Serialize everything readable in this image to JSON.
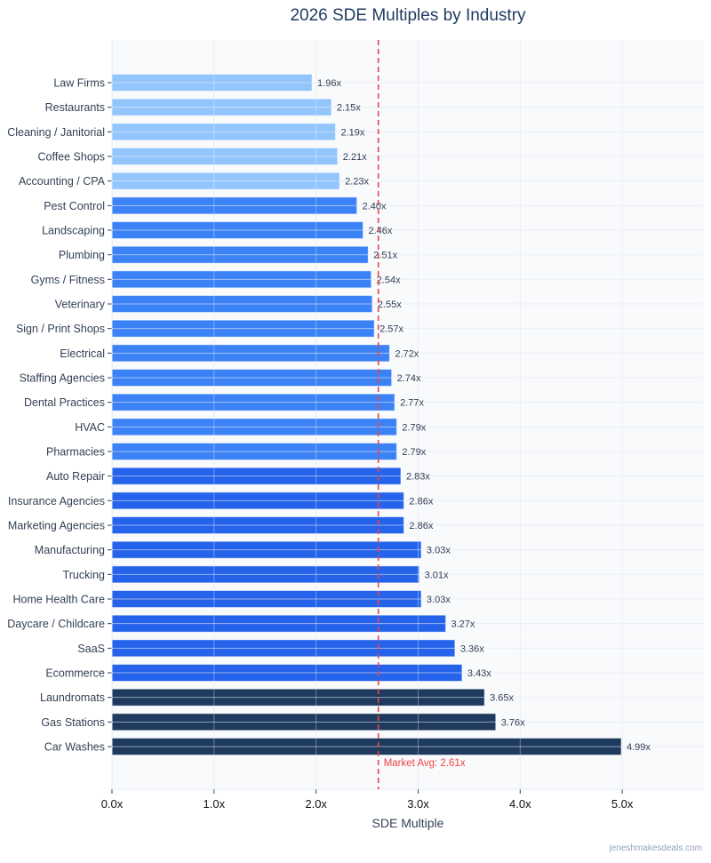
{
  "chart_data": {
    "type": "bar",
    "orientation": "horizontal",
    "title": "2026 SDE Multiples by Industry",
    "xlabel": "SDE Multiple",
    "ylabel": "",
    "xlim": [
      0,
      5.8
    ],
    "xticks": [
      0,
      1,
      2,
      3,
      4,
      5
    ],
    "xtick_labels": [
      "0.0x",
      "1.0x",
      "2.0x",
      "3.0x",
      "4.0x",
      "5.0x"
    ],
    "grid": true,
    "categories": [
      "Law Firms",
      "Restaurants",
      "Cleaning / Janitorial",
      "Coffee Shops",
      "Accounting / CPA",
      "Pest Control",
      "Landscaping",
      "Plumbing",
      "Gyms / Fitness",
      "Veterinary",
      "Sign / Print Shops",
      "Electrical",
      "Staffing Agencies",
      "Dental Practices",
      "HVAC",
      "Pharmacies",
      "Auto Repair",
      "Insurance Agencies",
      "Marketing Agencies",
      "Manufacturing",
      "Trucking",
      "Home Health Care",
      "Daycare / Childcare",
      "SaaS",
      "Ecommerce",
      "Laundromats",
      "Gas Stations",
      "Car Washes"
    ],
    "values": [
      1.96,
      2.15,
      2.19,
      2.21,
      2.23,
      2.4,
      2.46,
      2.51,
      2.54,
      2.55,
      2.57,
      2.72,
      2.74,
      2.77,
      2.79,
      2.79,
      2.83,
      2.86,
      2.86,
      3.03,
      3.01,
      3.03,
      3.27,
      3.36,
      3.43,
      3.65,
      3.76,
      4.99
    ],
    "data_labels": [
      "1.96x",
      "2.15x",
      "2.19x",
      "2.21x",
      "2.23x",
      "2.40x",
      "2.46x",
      "2.51x",
      "2.54x",
      "2.55x",
      "2.57x",
      "2.72x",
      "2.74x",
      "2.77x",
      "2.79x",
      "2.79x",
      "2.83x",
      "2.86x",
      "2.86x",
      "3.03x",
      "3.01x",
      "3.03x",
      "3.27x",
      "3.36x",
      "3.43x",
      "3.65x",
      "3.76x",
      "4.99x"
    ],
    "tiers": [
      0,
      0,
      0,
      0,
      0,
      1,
      1,
      1,
      1,
      1,
      1,
      1,
      1,
      1,
      1,
      1,
      2,
      2,
      2,
      2,
      2,
      2,
      2,
      2,
      2,
      3,
      3,
      3
    ],
    "tier_colors": [
      "#93c5fd",
      "#3b82f6",
      "#2563eb",
      "#1e3a5f"
    ],
    "reference_line": {
      "value": 2.61,
      "label": "Market Avg: 2.61x",
      "color": "#ef4444"
    },
    "watermark": "jeneshmakesdeals.com"
  }
}
